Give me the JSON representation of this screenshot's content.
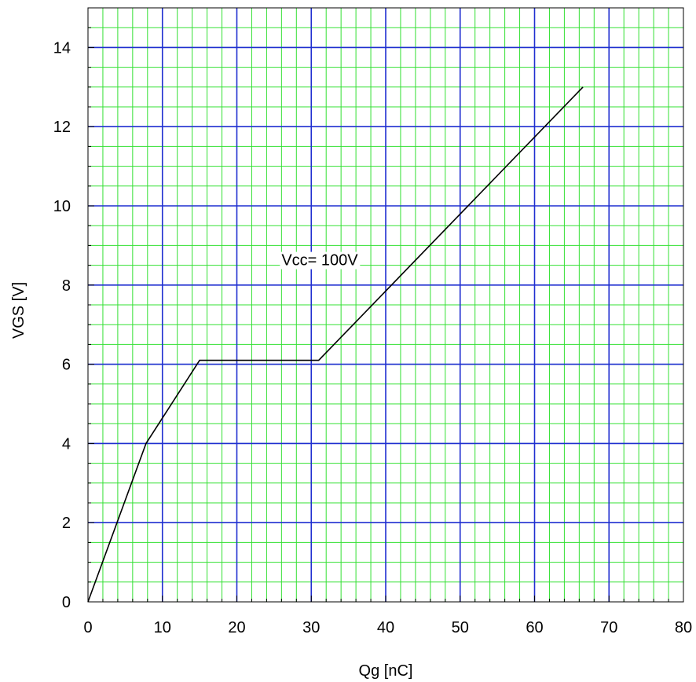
{
  "chart_data": {
    "type": "line",
    "xlabel": "Qg [nC]",
    "ylabel": "VGS [V]",
    "xlim": [
      0,
      80
    ],
    "ylim": [
      0,
      15
    ],
    "xticks": [
      0,
      10,
      20,
      30,
      40,
      50,
      60,
      70,
      80
    ],
    "yticks": [
      0,
      2,
      4,
      6,
      8,
      10,
      12,
      14
    ],
    "grid": {
      "major": true,
      "minor": true,
      "major_color": "#1f2fd0",
      "minor_color": "#33e033"
    },
    "series": [
      {
        "color": "#000000",
        "x": [
          0,
          7.8,
          15,
          31,
          66.5
        ],
        "y": [
          0,
          4.0,
          6.1,
          6.1,
          13.0
        ]
      }
    ],
    "annotations": [
      {
        "text": "Vcc= 100V",
        "x": 26,
        "y": 8.5
      }
    ]
  }
}
